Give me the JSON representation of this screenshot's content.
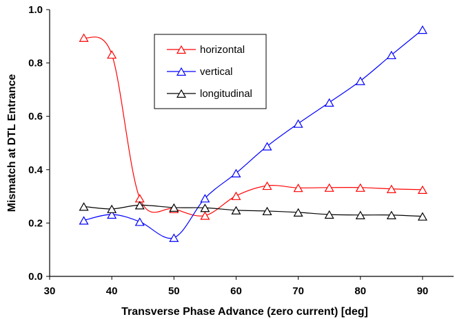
{
  "chart_data": {
    "type": "line",
    "title": "",
    "xlabel": "Transverse Phase Advance (zero current) [deg]",
    "ylabel": "Mismatch at DTL Entrance",
    "xlim": [
      30,
      95
    ],
    "ylim": [
      0.0,
      1.0
    ],
    "x_ticks": [
      "30",
      "40",
      "50",
      "60",
      "70",
      "80",
      "90"
    ],
    "y_ticks": [
      "0.0",
      "0.2",
      "0.4",
      "0.6",
      "0.8",
      "1.0"
    ],
    "grid": false,
    "legend_position": "top-center",
    "marker": "open-triangle",
    "smooth": true,
    "series": [
      {
        "name": "horizontal",
        "color": "#ff0000",
        "points": [
          [
            35.5,
            0.895
          ],
          [
            40,
            0.832
          ],
          [
            44.5,
            0.293
          ],
          [
            50,
            0.253
          ],
          [
            55,
            0.228
          ],
          [
            60,
            0.302
          ],
          [
            65,
            0.34
          ],
          [
            70,
            0.332
          ],
          [
            75,
            0.333
          ],
          [
            80,
            0.333
          ],
          [
            85,
            0.328
          ],
          [
            90,
            0.325
          ]
        ]
      },
      {
        "name": "vertical",
        "color": "#0000ff",
        "points": [
          [
            35.5,
            0.21
          ],
          [
            40,
            0.232
          ],
          [
            44.5,
            0.205
          ],
          [
            50,
            0.145
          ],
          [
            55,
            0.293
          ],
          [
            60,
            0.387
          ],
          [
            65,
            0.488
          ],
          [
            70,
            0.573
          ],
          [
            75,
            0.652
          ],
          [
            80,
            0.733
          ],
          [
            85,
            0.83
          ],
          [
            90,
            0.925
          ]
        ]
      },
      {
        "name": "longitudinal",
        "color": "#000000",
        "points": [
          [
            35.5,
            0.262
          ],
          [
            40,
            0.253
          ],
          [
            44.5,
            0.267
          ],
          [
            50,
            0.258
          ],
          [
            55,
            0.257
          ],
          [
            60,
            0.248
          ],
          [
            65,
            0.245
          ],
          [
            70,
            0.24
          ],
          [
            75,
            0.232
          ],
          [
            80,
            0.23
          ],
          [
            85,
            0.23
          ],
          [
            90,
            0.225
          ]
        ]
      }
    ]
  }
}
